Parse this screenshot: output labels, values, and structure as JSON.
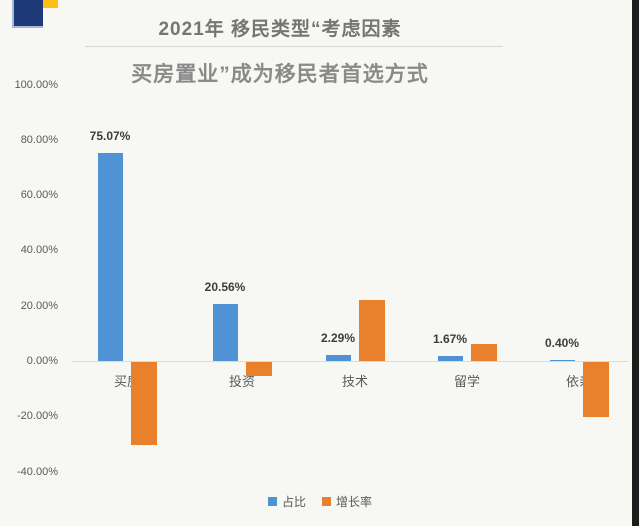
{
  "header": {
    "title": "2021年 移民类型“考虑因素",
    "subtitle": "买房置业”成为移民者首选方式"
  },
  "logo": {
    "navy_color": "#1e3a76",
    "yellow_color": "#fdbf11"
  },
  "colors": {
    "proportion_blue": "#4f93d5",
    "growth_orange": "#e8802c",
    "background": "#f7f7f4",
    "axis_text": "#595959",
    "title_text": "#757575"
  },
  "chart_data": {
    "type": "bar",
    "title": "2021年 移民类型“考虑因素",
    "subtitle": "买房置业”成为移民者首选方式",
    "categories": [
      "买房",
      "投资",
      "技术",
      "留学",
      "依亲"
    ],
    "series": [
      {
        "name": "占比",
        "color": "#4f93d5",
        "values": [
          75.07,
          20.56,
          2.29,
          1.67,
          0.4
        ],
        "labels": [
          "75.07%",
          "20.56%",
          "2.29%",
          "1.67%",
          "0.40%"
        ]
      },
      {
        "name": "增长率",
        "color": "#e8802c",
        "values": [
          -30,
          -5,
          22,
          6,
          -20
        ],
        "labels": [
          "",
          "",
          "",
          "",
          ""
        ],
        "estimated": true
      }
    ],
    "xlabel": "",
    "ylabel": "",
    "ylim": [
      -40,
      100
    ],
    "ytick_labels": [
      "100.00%",
      "80.00%",
      "60.00%",
      "40.00%",
      "20.00%",
      "0.00%",
      "-20.00%",
      "-40.00%"
    ],
    "grid": false,
    "legend_position": "bottom"
  }
}
